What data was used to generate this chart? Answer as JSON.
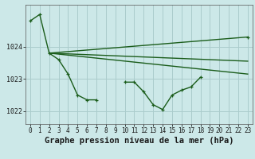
{
  "title": "Graphe pression niveau de la mer (hPa)",
  "background_color": "#cce8e8",
  "grid_color": "#aacccc",
  "line_color": "#1a5c1a",
  "xlim": [
    -0.5,
    23.5
  ],
  "ylim": [
    1021.6,
    1025.3
  ],
  "yticks": [
    1022,
    1023,
    1024
  ],
  "xticks": [
    0,
    1,
    2,
    3,
    4,
    5,
    6,
    7,
    8,
    9,
    10,
    11,
    12,
    13,
    14,
    15,
    16,
    17,
    18,
    19,
    20,
    21,
    22,
    23
  ],
  "series": [
    {
      "x": [
        0,
        1,
        2,
        3,
        4,
        5,
        6,
        7,
        8,
        9,
        10,
        11,
        12,
        13,
        14,
        15,
        16,
        17,
        18,
        19,
        20,
        21,
        22,
        23
      ],
      "y": [
        1024.8,
        1025.0,
        1023.8,
        1023.6,
        1023.15,
        1022.5,
        1022.35,
        1022.35,
        null,
        null,
        1022.9,
        1022.9,
        1022.6,
        1022.2,
        1022.05,
        1022.5,
        1022.65,
        1022.75,
        1023.05,
        null,
        null,
        null,
        null,
        1024.3
      ],
      "has_markers": true,
      "linewidth": 1.0
    },
    {
      "x": [
        2,
        23
      ],
      "y": [
        1023.8,
        1024.3
      ],
      "has_markers": false,
      "linewidth": 1.0
    },
    {
      "x": [
        2,
        23
      ],
      "y": [
        1023.8,
        1023.55
      ],
      "has_markers": false,
      "linewidth": 1.0
    },
    {
      "x": [
        2,
        23
      ],
      "y": [
        1023.8,
        1023.15
      ],
      "has_markers": false,
      "linewidth": 1.0
    }
  ],
  "title_fontsize": 7.5,
  "tick_fontsize": 5.5,
  "title_fontweight": "bold"
}
